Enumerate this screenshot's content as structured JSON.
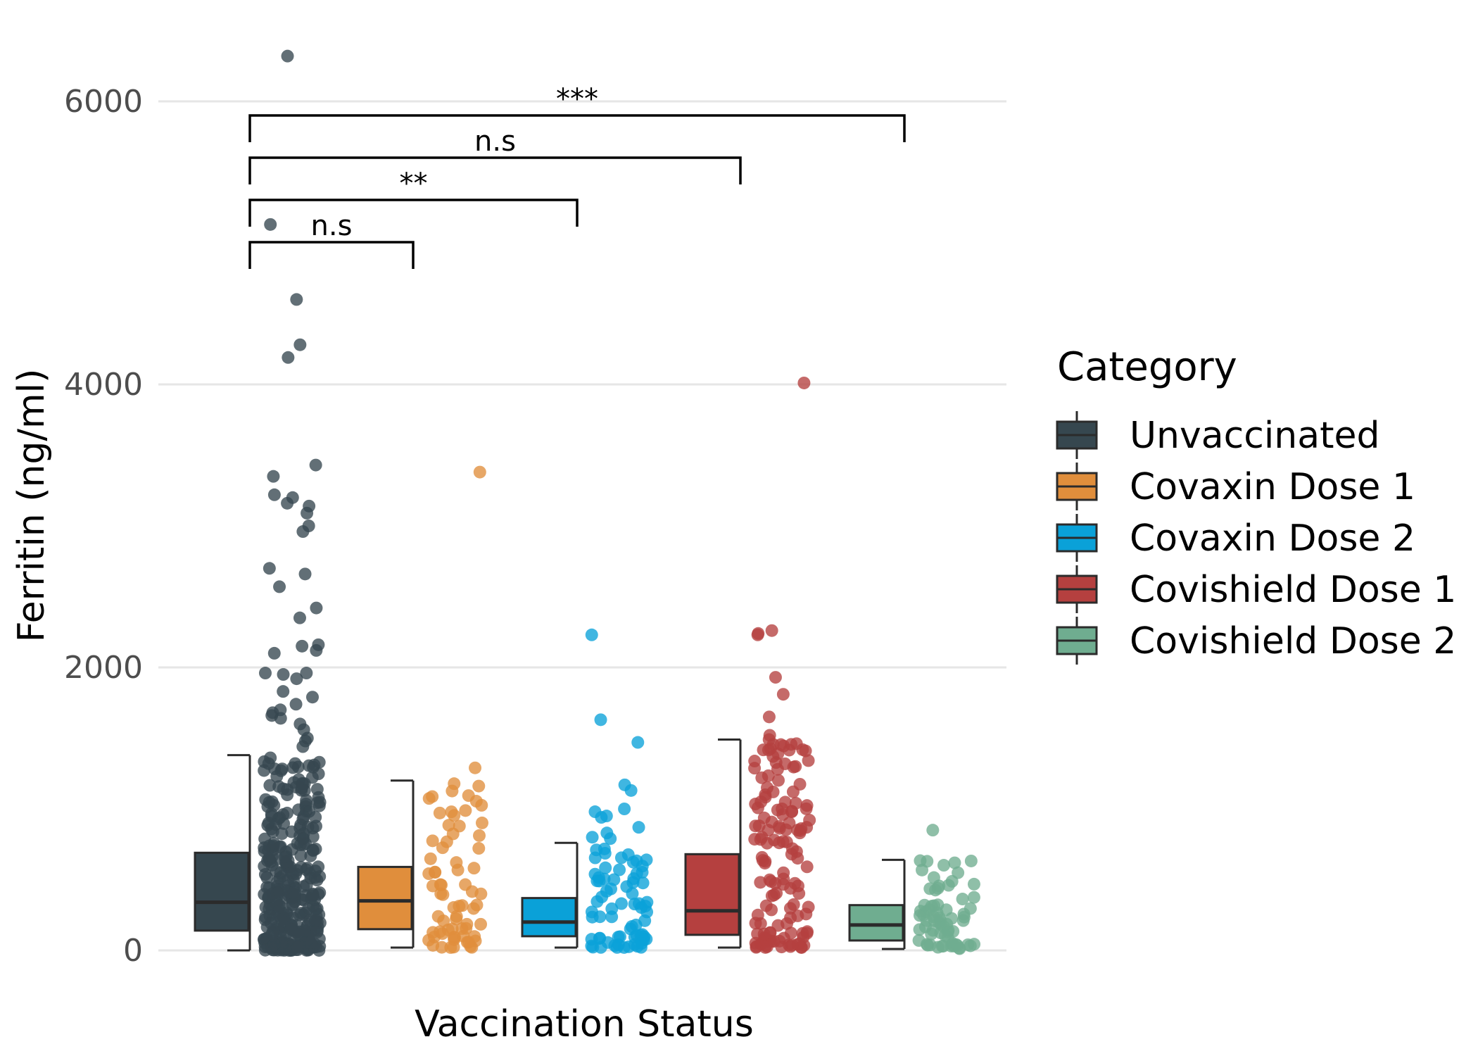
{
  "chart_data": {
    "type": "box",
    "xlabel": "Vaccination Status",
    "ylabel": "Ferritin (ng/ml)",
    "ylim": [
      0,
      6500
    ],
    "yticks": [
      0,
      2000,
      4000,
      6000
    ],
    "y_tick_labels": [
      "0",
      "2000",
      "4000",
      "6000"
    ],
    "grid": "horizontal",
    "legend": {
      "title": "Category",
      "placement": "right"
    },
    "series": [
      {
        "name": "Unvaccinated",
        "color": "#36474f",
        "whisker_low": 0,
        "q1": 140,
        "median": 340,
        "q3": 690,
        "whisker_high": 1380,
        "outliers": [
          6320,
          5130,
          4600,
          4280,
          4190,
          3430,
          3350,
          3220,
          3200,
          3160,
          3140,
          3090,
          3000,
          2960,
          2700,
          2660,
          2570,
          2420,
          2350,
          2160,
          2150,
          2120,
          2100,
          1960,
          1960,
          1950,
          1920,
          1830,
          1790,
          1740,
          1700,
          1680,
          1660,
          1640,
          1600,
          1560,
          1500,
          1480,
          1440
        ]
      },
      {
        "name": "Covaxin Dose 1",
        "color": "#e08e3c",
        "whisker_low": 20,
        "q1": 150,
        "median": 350,
        "q3": 590,
        "whisker_high": 1200,
        "outliers": [
          3380,
          1290
        ]
      },
      {
        "name": "Covaxin Dose 2",
        "color": "#0aa1d8",
        "whisker_low": 20,
        "q1": 100,
        "median": 200,
        "q3": 370,
        "whisker_high": 760,
        "outliers": [
          2230,
          1630,
          1470,
          1170,
          1130,
          1000,
          980,
          950,
          940,
          870,
          830,
          800,
          790
        ]
      },
      {
        "name": "Covishield Dose 1",
        "color": "#b5403f",
        "whisker_low": 20,
        "q1": 110,
        "median": 280,
        "q3": 680,
        "whisker_high": 1490,
        "outliers": [
          4010,
          2260,
          2240,
          2230,
          1930,
          1810,
          1650,
          1520,
          1490,
          1410,
          1390,
          1300,
          1280,
          1150,
          1120,
          1100,
          1050,
          1000,
          980,
          960,
          900,
          850,
          830,
          800,
          780,
          760
        ]
      },
      {
        "name": "Covishield Dose 2",
        "color": "#6fad90",
        "whisker_low": 10,
        "q1": 70,
        "median": 180,
        "q3": 320,
        "whisker_high": 640,
        "outliers": [
          850
        ]
      }
    ],
    "comparisons": [
      {
        "from": "Unvaccinated",
        "to": "Covaxin Dose 1",
        "label": "n.s",
        "y": 4900
      },
      {
        "from": "Unvaccinated",
        "to": "Covaxin Dose 2",
        "label": "**",
        "y": 5200
      },
      {
        "from": "Unvaccinated",
        "to": "Covishield Dose 1",
        "label": "n.s",
        "y": 5500
      },
      {
        "from": "Unvaccinated",
        "to": "Covishield Dose 2",
        "label": "***",
        "y": 5800
      }
    ]
  }
}
